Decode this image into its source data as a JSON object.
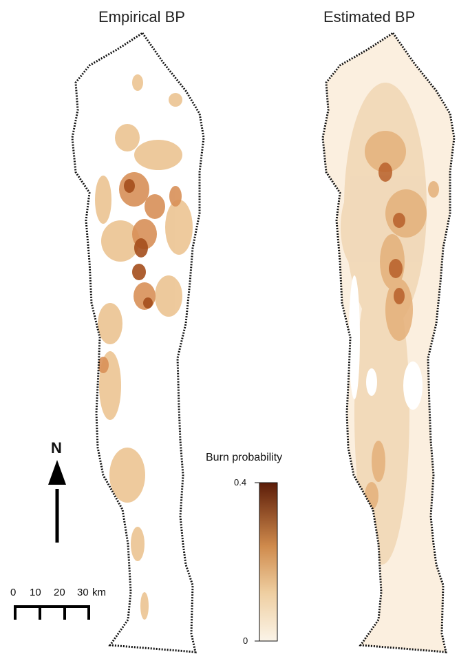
{
  "maps": [
    {
      "title": "Empirical BP"
    },
    {
      "title": "Estimated BP"
    }
  ],
  "north_arrow": {
    "label": "N"
  },
  "legend": {
    "title": "Burn probability",
    "max_label": "0.4",
    "min_label": "0",
    "color_low": "#fbf4e8",
    "color_high": "#5c1c08"
  },
  "scale_bar": {
    "labels": [
      "0",
      "10",
      "20",
      "30"
    ],
    "unit": "km"
  }
}
